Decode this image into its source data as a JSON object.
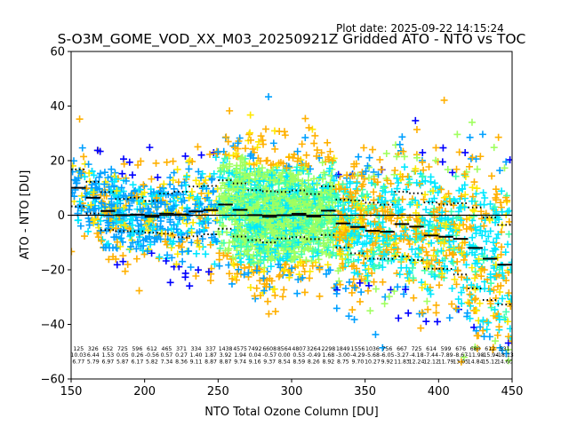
{
  "chart_data": {
    "type": "scatter",
    "title": "S-O3M_GOME_VOD_XX_M03_20250921Z Gridded ATO - NTO vs TOC",
    "subtitle": "Plot date: 2025-09-22 14:15:24",
    "xlabel": "NTO Total Ozone Column [DU]",
    "ylabel": "ATO - NTO [DU]",
    "xlim": [
      150,
      450
    ],
    "ylim": [
      -60,
      60
    ],
    "xticks": [
      150,
      200,
      250,
      300,
      350,
      400,
      450
    ],
    "yticks": [
      -60,
      -40,
      -20,
      0,
      20,
      40,
      60
    ],
    "grid": false,
    "legend": "none",
    "marker": "plus",
    "zero_line": 0,
    "bin_width": 10,
    "bins": {
      "x_start": [
        150,
        160,
        170,
        180,
        190,
        200,
        210,
        220,
        230,
        240,
        250,
        260,
        270,
        280,
        290,
        300,
        310,
        320,
        330,
        340,
        350,
        360,
        370,
        380,
        390,
        400,
        410,
        420,
        430,
        440
      ],
      "count": [
        125,
        326,
        652,
        725,
        596,
        612,
        465,
        371,
        334,
        337,
        1438,
        4575,
        7492,
        6608,
        8564,
        4807,
        3264,
        2298,
        1849,
        1556,
        1036,
        756,
        667,
        725,
        614,
        599,
        676,
        680,
        612,
        531
      ],
      "mean": [
        10.03,
        6.44,
        1.53,
        0.05,
        0.26,
        -0.56,
        0.57,
        0.27,
        1.4,
        1.87,
        3.92,
        1.94,
        0.04,
        -0.57,
        0.0,
        0.53,
        -0.49,
        1.68,
        -3.0,
        -4.29,
        -5.68,
        -6.05,
        -3.27,
        -4.18,
        -7.44,
        -7.89,
        -8.67,
        -11.98,
        -15.94,
        -18.13
      ],
      "std": [
        6.77,
        5.79,
        6.97,
        5.87,
        6.17,
        5.82,
        7.34,
        8.36,
        9.11,
        8.87,
        8.87,
        9.74,
        9.16,
        9.37,
        8.54,
        8.59,
        8.26,
        8.92,
        8.75,
        9.7,
        10.27,
        9.92,
        11.83,
        12.24,
        12.12,
        11.79,
        13.05,
        14.84,
        15.12,
        14.6
      ]
    },
    "color_scale": [
      "#0000ff",
      "#00a0ff",
      "#00e8ff",
      "#40ffb0",
      "#a0ff60",
      "#ffe800",
      "#ffb000"
    ],
    "scatter_envelope": {
      "description": "dense cloud of colored plus markers following the binned mean with spread ~2-3 std",
      "upper_outliers_max": 46,
      "lower_outliers_min": -60
    }
  }
}
